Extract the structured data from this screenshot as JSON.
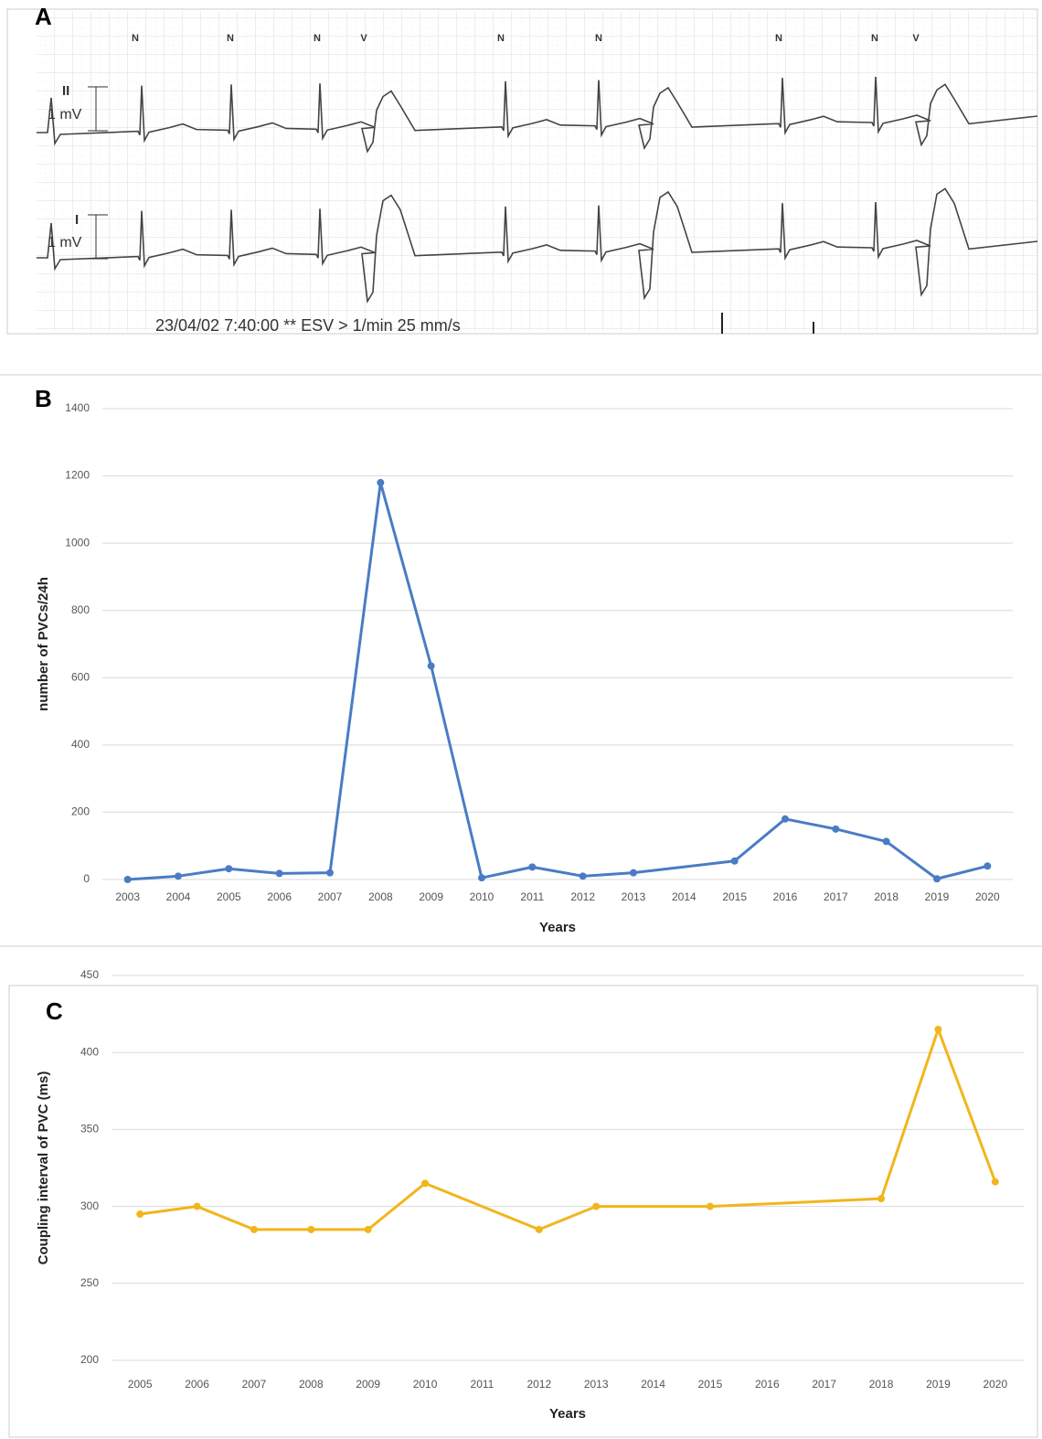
{
  "panels": {
    "a": "A",
    "b": "B",
    "c": "C"
  },
  "ecg": {
    "beat_labels": [
      "N",
      "N",
      "N",
      "V",
      "N",
      "N",
      "N",
      "N",
      "V"
    ],
    "lead_top": "II",
    "scale_top": "1 mV",
    "lead_bottom": "I",
    "scale_bottom": "1 mV",
    "caption": "23/04/02 7:40:00 ** ESV > 1/min 25 mm/s"
  },
  "chart_data": [
    {
      "type": "line",
      "x_label": "Years",
      "y_label": "number of PVCs/24h",
      "color": "#4a7cc4",
      "x": [
        2003,
        2004,
        2005,
        2006,
        2007,
        2008,
        2009,
        2010,
        2011,
        2012,
        2013,
        2015,
        2016,
        2017,
        2018,
        2019,
        2020
      ],
      "values": [
        0,
        10,
        32,
        18,
        20,
        1180,
        635,
        5,
        37,
        10,
        20,
        55,
        180,
        150,
        113,
        2,
        40
      ],
      "xlim": [
        2002.5,
        2020.5
      ],
      "xticks": [
        2003,
        2004,
        2005,
        2006,
        2007,
        2008,
        2009,
        2010,
        2011,
        2012,
        2013,
        2014,
        2015,
        2016,
        2017,
        2018,
        2019,
        2020
      ],
      "ylim": [
        0,
        1400
      ],
      "yticks": [
        0,
        200,
        400,
        600,
        800,
        1000,
        1200,
        1400
      ],
      "grid": true
    },
    {
      "type": "line",
      "x_label": "Years",
      "y_label": "Coupling interval of PVC (ms)",
      "color": "#f2b51c",
      "x": [
        2005,
        2006,
        2007,
        2008,
        2009,
        2010,
        2012,
        2013,
        2015,
        2018,
        2019,
        2020
      ],
      "values": [
        295,
        300,
        285,
        285,
        285,
        315,
        285,
        300,
        300,
        305,
        415,
        316
      ],
      "xlim": [
        2004.5,
        2020.5
      ],
      "xticks": [
        2005,
        2006,
        2007,
        2008,
        2009,
        2010,
        2011,
        2012,
        2013,
        2014,
        2015,
        2016,
        2017,
        2018,
        2019,
        2020
      ],
      "ylim": [
        200,
        450
      ],
      "yticks": [
        200,
        250,
        300,
        350,
        400,
        450
      ],
      "grid": true
    }
  ]
}
